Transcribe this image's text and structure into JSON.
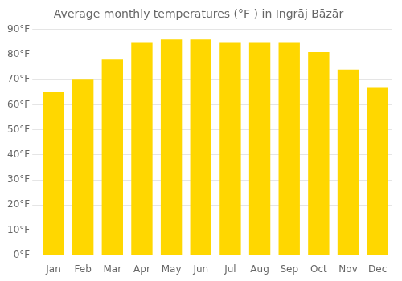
{
  "chart_data": {
    "type": "bar",
    "title": "Average monthly temperatures (°F ) in Ingrāj Bāzār",
    "categories": [
      "Jan",
      "Feb",
      "Mar",
      "Apr",
      "May",
      "Jun",
      "Jul",
      "Aug",
      "Sep",
      "Oct",
      "Nov",
      "Dec"
    ],
    "values": [
      65,
      70,
      78,
      85,
      86,
      86,
      85,
      85,
      85,
      81,
      74,
      67
    ],
    "color": "#FFD700",
    "ylim": [
      0,
      90
    ],
    "yticks": [
      {
        "value": 0,
        "label": "0°F"
      },
      {
        "value": 10,
        "label": "10°F"
      },
      {
        "value": 20,
        "label": "20°F"
      },
      {
        "value": 30,
        "label": "30°F"
      },
      {
        "value": 40,
        "label": "40°F"
      },
      {
        "value": 50,
        "label": "50°F"
      },
      {
        "value": 60,
        "label": "60°F"
      },
      {
        "value": 70,
        "label": "70°F"
      },
      {
        "value": 80,
        "label": "80°F"
      },
      {
        "value": 90,
        "label": "90°F"
      }
    ],
    "grid": true
  }
}
